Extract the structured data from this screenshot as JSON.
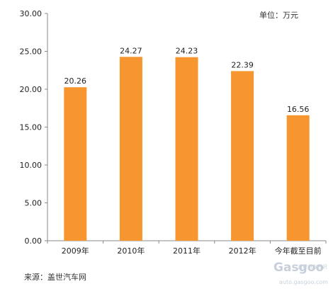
{
  "chart_data": {
    "type": "bar",
    "categories": [
      "2009年",
      "2010年",
      "2011年",
      "2012年",
      "今年截至目前"
    ],
    "values": [
      20.26,
      24.27,
      24.23,
      22.39,
      16.56
    ],
    "value_labels": [
      "20.26",
      "24.27",
      "24.23",
      "22.39",
      "16.56"
    ],
    "yticks": [
      "0.00",
      "5.00",
      "10.00",
      "15.00",
      "20.00",
      "25.00",
      "30.00"
    ],
    "ylim": [
      0,
      30
    ],
    "grid": false,
    "legend": "none",
    "unit_label": "单位：万元",
    "bar_color": "#f7962e"
  },
  "source": "来源：盖世汽车网",
  "watermark": {
    "logo": "Gasgoo",
    "cn": "盖世汽车资讯",
    "url": "auto.gasgoo.com"
  }
}
